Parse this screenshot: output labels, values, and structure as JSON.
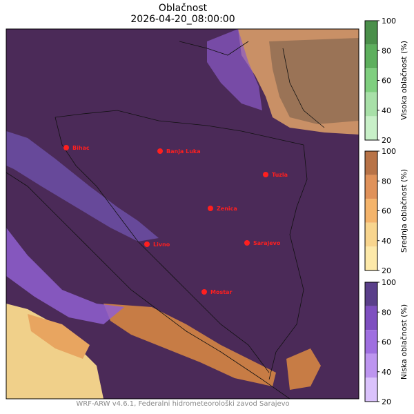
{
  "title": "Oblačnost",
  "subtitle": "2026-04-20_08:00:00",
  "footer": "WRF-ARW v4.6.1, Federalni hidrometeorološki zavod Sarajevo",
  "cities": [
    {
      "name": "Bihac"
    },
    {
      "name": "Banja Luka"
    },
    {
      "name": "Tuzla"
    },
    {
      "name": "Zenica"
    },
    {
      "name": "Livno"
    },
    {
      "name": "Sarajevo"
    },
    {
      "name": "Mostar"
    }
  ],
  "colorbars": [
    {
      "label": "Visoka oblačnost (%)",
      "ticks": [
        "100",
        "80",
        "60",
        "40",
        "20"
      ],
      "colors": [
        "#4a8f4a",
        "#5daf5d",
        "#7fcf7f",
        "#a8e0a8",
        "#c8f0c8"
      ]
    },
    {
      "label": "Srednja oblačnost (%)",
      "ticks": [
        "100",
        "80",
        "60",
        "40",
        "20"
      ],
      "colors": [
        "#b87347",
        "#e0925a",
        "#f4b46b",
        "#f8d58e",
        "#fde9a9"
      ]
    },
    {
      "label": "Niska oblačnost (%)",
      "ticks": [
        "100",
        "80",
        "60",
        "40",
        "20"
      ],
      "colors": [
        "#5a3f8a",
        "#7e4fc0",
        "#9f6fe0",
        "#bd95ef",
        "#dac2fb"
      ]
    }
  ],
  "colors": {
    "map_base": "#4b2a58",
    "city_marker": "#ff1f1f",
    "border": "#111111"
  }
}
